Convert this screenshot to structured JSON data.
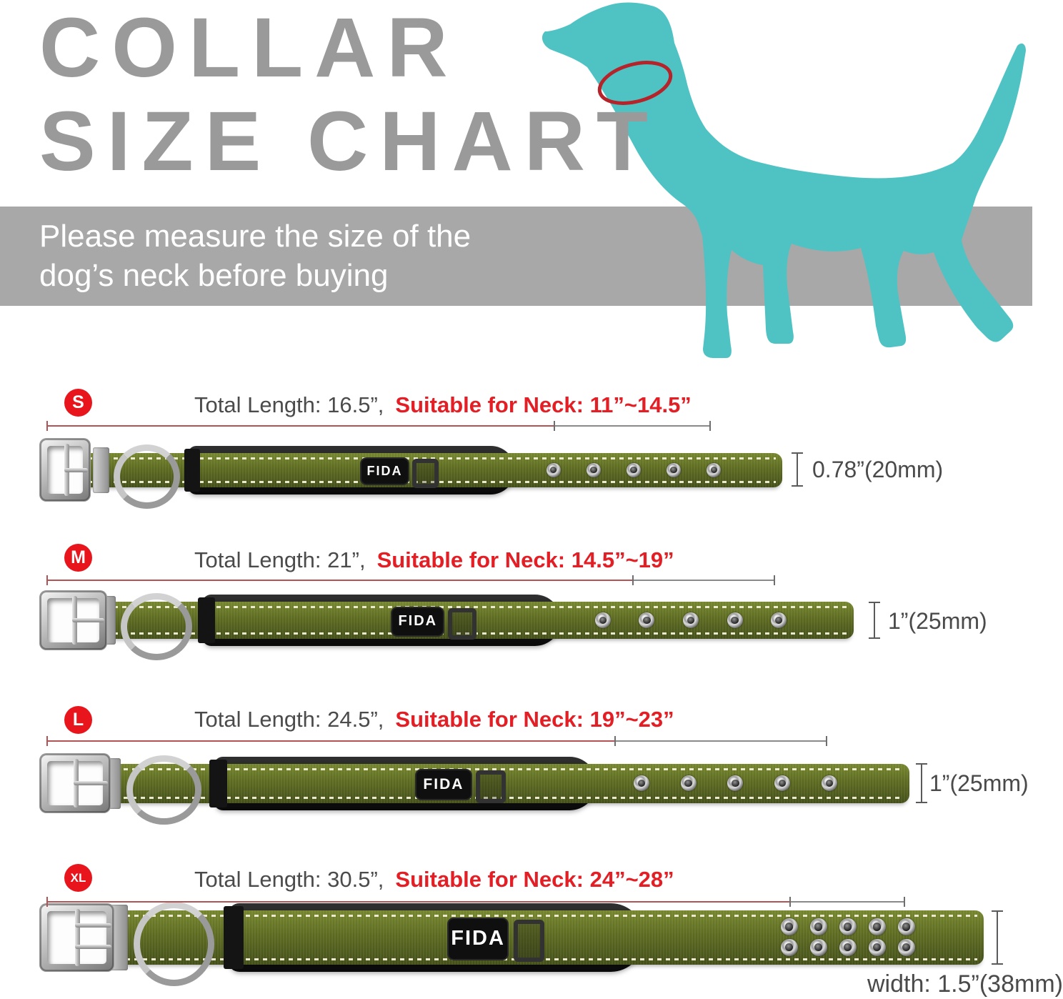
{
  "title": {
    "line1": "COLLAR",
    "line2": "SIZE CHART"
  },
  "banner": {
    "line1": "Please measure the size of the",
    "line2": "dog’s neck before buying"
  },
  "brand": "FIDA",
  "colors": {
    "title_gray": "#9a9a9a",
    "banner_gray": "#a8a8a8",
    "dog_teal": "#4fc3c3",
    "neck_ellipse_red": "#b5242a",
    "badge_red": "#e8151c",
    "accent_red": "#e31e24",
    "measure_line_red": "#b25455",
    "measure_line_gray": "#8a8a8a",
    "collar_olive": "#5c6a20"
  },
  "rows": [
    {
      "badge": "S",
      "total_length_label": "Total Length: 16.5”,",
      "neck_label": "Suitable for Neck: 11”~14.5”",
      "width_label": "0.78”(20mm)"
    },
    {
      "badge": "M",
      "total_length_label": "Total Length: 21”,",
      "neck_label": "Suitable for Neck: 14.5”~19”",
      "width_label": "1”(25mm)"
    },
    {
      "badge": "L",
      "total_length_label": "Total Length: 24.5”,",
      "neck_label": "Suitable for Neck: 19”~23”",
      "width_label": "1”(25mm)"
    },
    {
      "badge": "XL",
      "total_length_label": "Total Length: 30.5”,",
      "neck_label": "Suitable for Neck: 24”~28”",
      "width_label": "width: 1.5”(38mm)"
    }
  ]
}
